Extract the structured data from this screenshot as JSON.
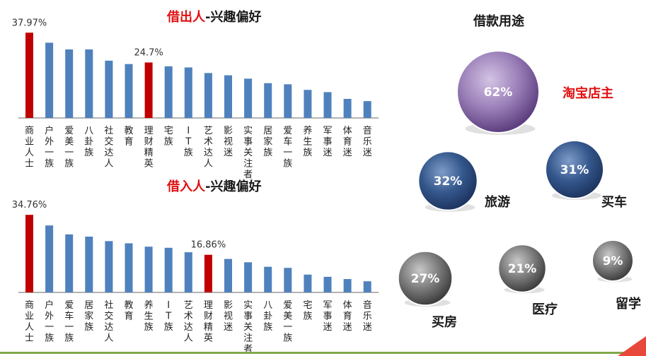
{
  "chart_data": [
    {
      "type": "bar",
      "title": {
        "highlight": "借出人",
        "rest": "-兴趣偏好"
      },
      "categories": [
        "商业人士",
        "户外一族",
        "爱美一族",
        "八卦族",
        "社交达人",
        "教育",
        "理财精英",
        "宅族",
        "IT族",
        "艺术达人",
        "影视迷",
        "实事关注者",
        "居家族",
        "爱车一族",
        "养生族",
        "军事迷",
        "体育迷",
        "音乐迷"
      ],
      "values": [
        37.97,
        33.5,
        30.5,
        30.5,
        25.5,
        24.0,
        24.7,
        23.0,
        22.5,
        20.0,
        19.0,
        17.5,
        15.5,
        15.0,
        12.5,
        11.5,
        8.5,
        7.5
      ],
      "highlight_indices": [
        0,
        6
      ],
      "data_labels": [
        {
          "index": 0,
          "text": "37.97%"
        },
        {
          "index": 6,
          "text": "24.7%"
        }
      ],
      "colors": {
        "bar": "#4f81bd",
        "highlight": "#c00000"
      }
    },
    {
      "type": "bar",
      "title": {
        "highlight": "借入人",
        "rest": "-兴趣偏好"
      },
      "categories": [
        "商业人士",
        "户外一族",
        "爱车一族",
        "居家族",
        "社交达人",
        "教育",
        "养生族",
        "IT族",
        "艺术达人",
        "理财精英",
        "影视迷",
        "实事关注者",
        "八卦族",
        "爱美一族",
        "宅族",
        "军事迷",
        "体育迷",
        "音乐迷"
      ],
      "values": [
        34.76,
        30.0,
        26.0,
        25.0,
        23.0,
        22.0,
        20.5,
        20.0,
        18.0,
        16.86,
        15.0,
        13.5,
        11.5,
        11.0,
        8.0,
        7.0,
        6.0,
        5.0
      ],
      "highlight_indices": [
        0,
        9
      ],
      "data_labels": [
        {
          "index": 0,
          "text": "34.76%"
        },
        {
          "index": 9,
          "text": "16.86%"
        }
      ],
      "colors": {
        "bar": "#4f81bd",
        "highlight": "#c00000"
      }
    },
    {
      "type": "bubble",
      "title": "借款用途",
      "series": [
        {
          "name": "淘宝店主",
          "value": 62,
          "label": "62%",
          "color": "purple",
          "name_color": "#e01010"
        },
        {
          "name": "旅游",
          "value": 32,
          "label": "32%",
          "color": "blue",
          "name_color": "#1a1a1a"
        },
        {
          "name": "买车",
          "value": 31,
          "label": "31%",
          "color": "blue",
          "name_color": "#1a1a1a"
        },
        {
          "name": "买房",
          "value": 27,
          "label": "27%",
          "color": "gray",
          "name_color": "#1a1a1a"
        },
        {
          "name": "医疗",
          "value": 21,
          "label": "21%",
          "color": "gray",
          "name_color": "#1a1a1a"
        },
        {
          "name": "留学",
          "value": 9,
          "label": "9%",
          "color": "gray",
          "name_color": "#1a1a1a"
        }
      ]
    }
  ]
}
